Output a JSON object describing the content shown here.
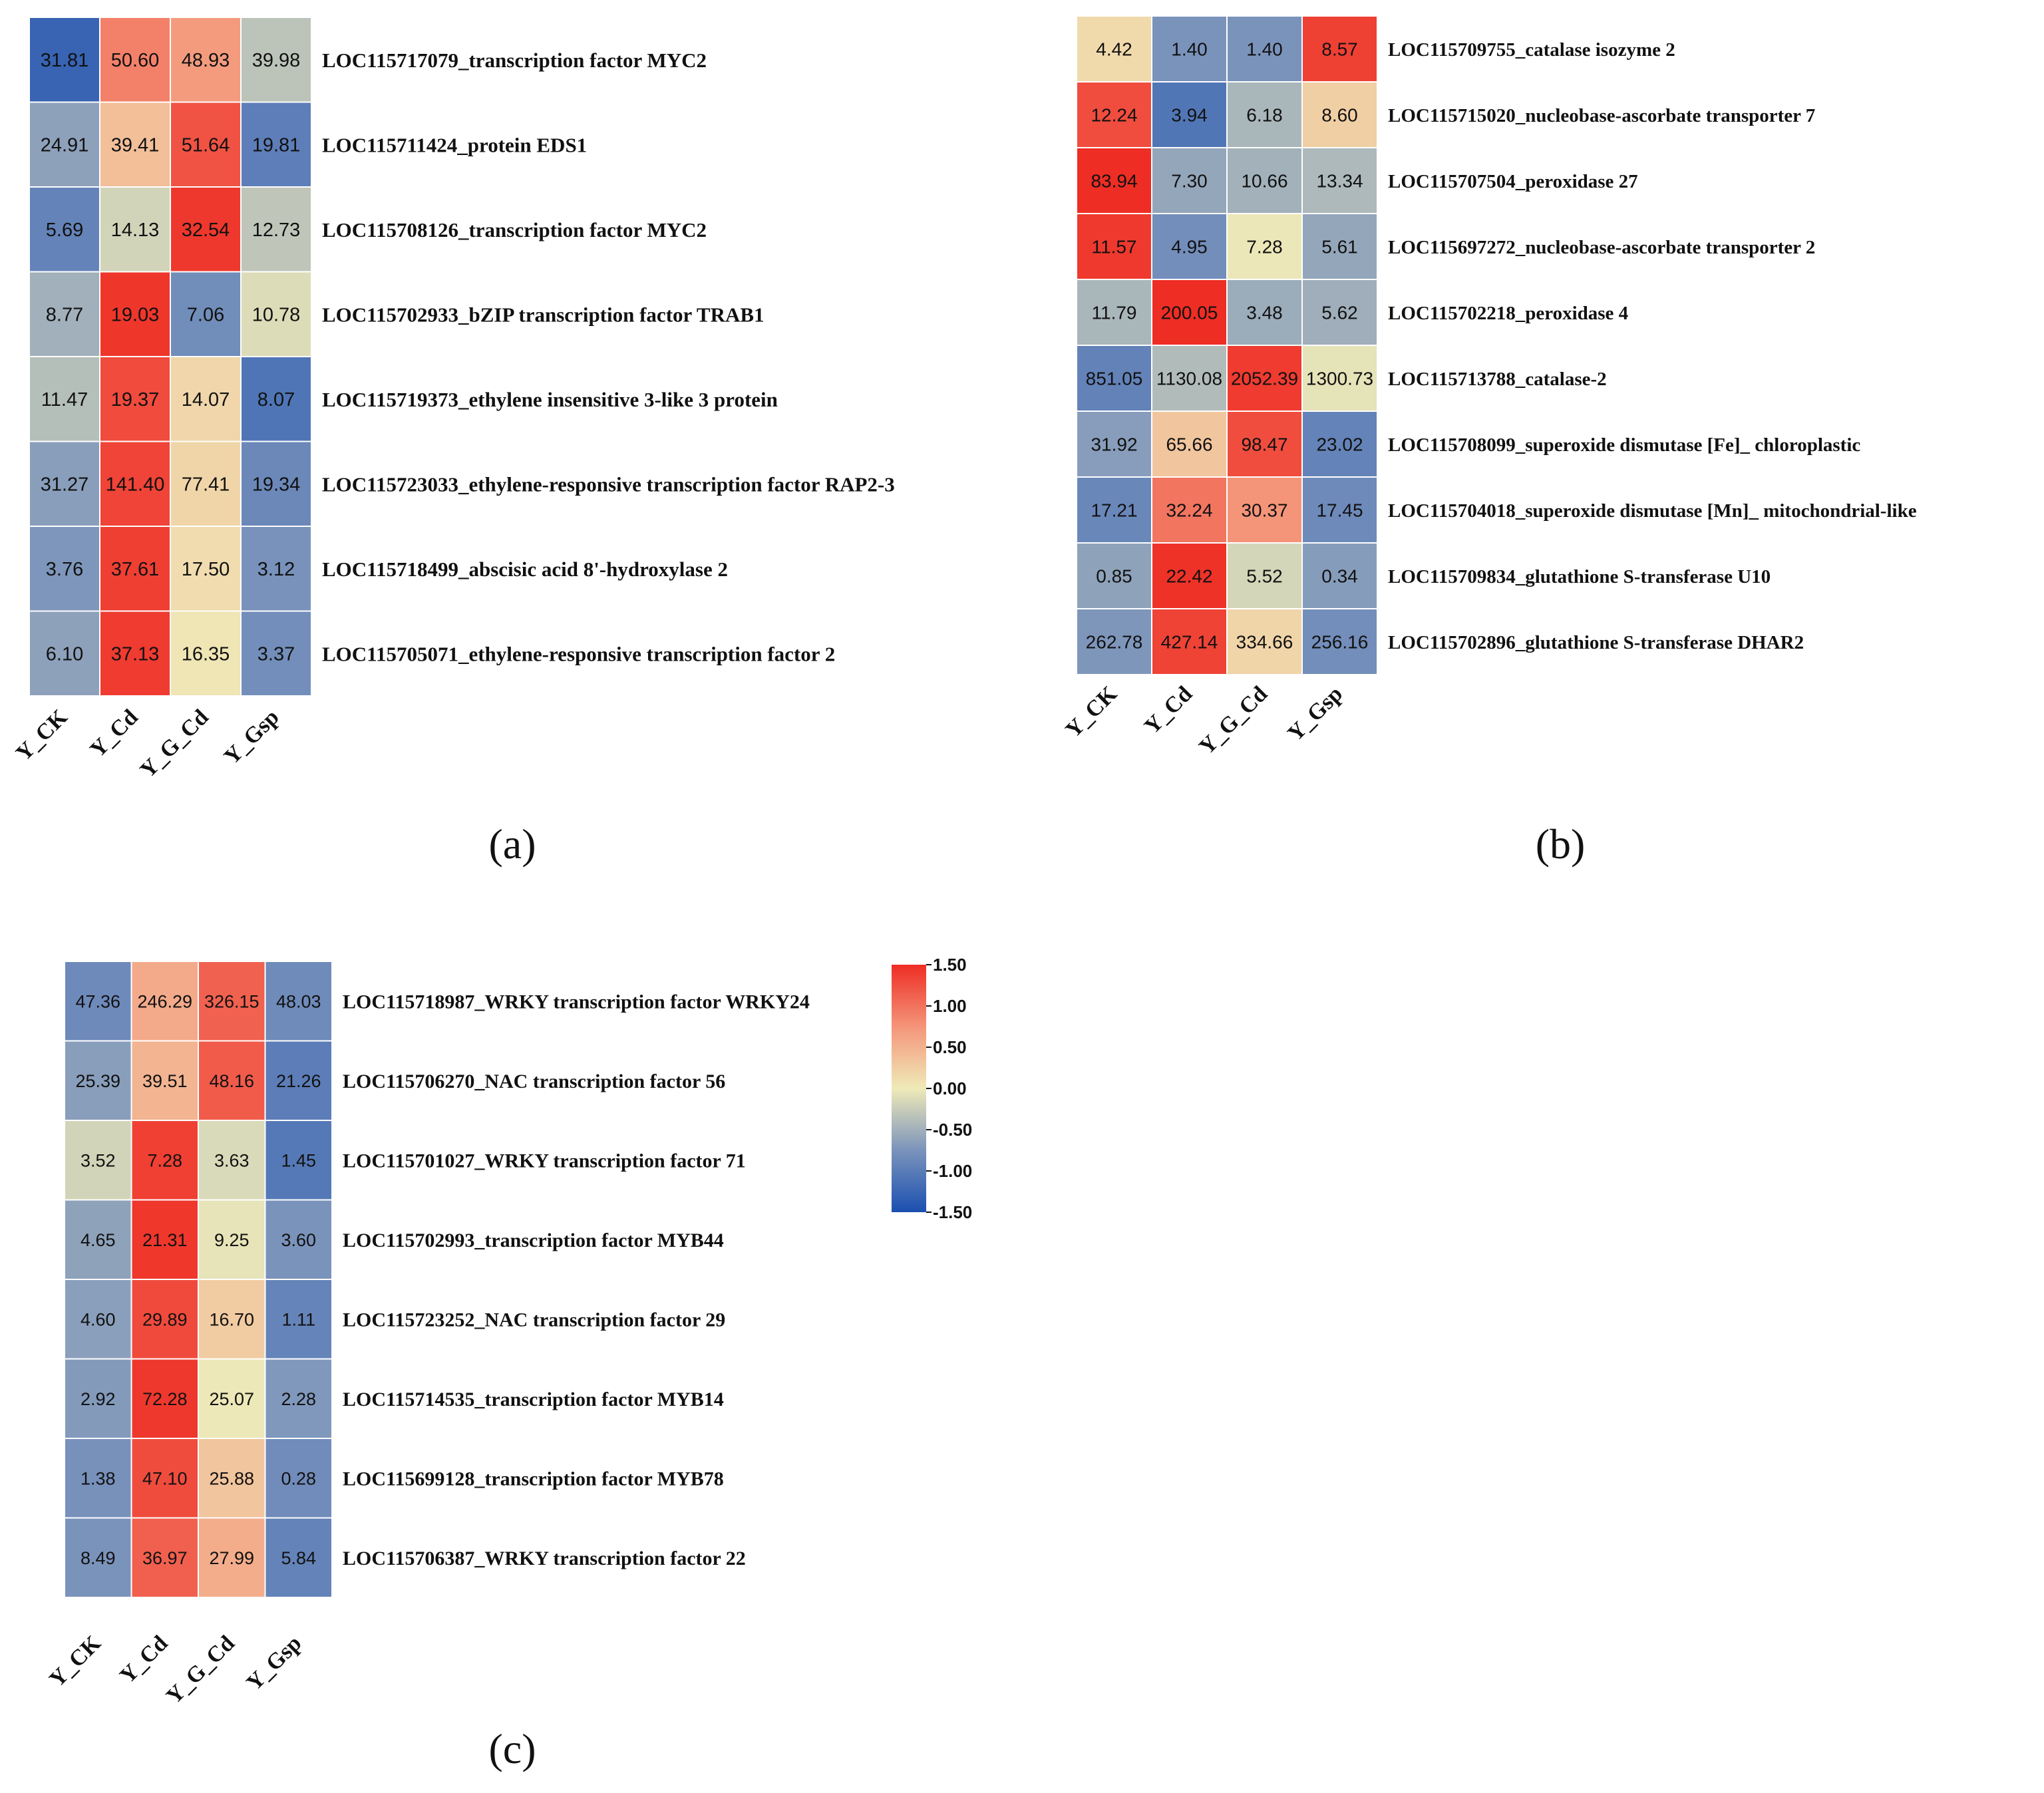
{
  "colors": {
    "low": "#1a4fb0",
    "mid": "#efeab8",
    "high": "#ee2d24"
  },
  "chart_data": [
    {
      "type": "heatmap",
      "panel": "(a)",
      "columns": [
        "Y_CK",
        "Y_Cd",
        "Y_G_Cd",
        "Y_Gsp"
      ],
      "rows": [
        "LOC115717079_transcription factor MYC2",
        "LOC115711424_protein EDS1",
        "LOC115708126_transcription factor MYC2",
        "LOC115702933_bZIP transcription factor TRAB1",
        "LOC115719373_ethylene insensitive 3-like 3 protein",
        "LOC115723033_ethylene-responsive transcription factor RAP2-3",
        "LOC115718499_abscisic acid 8'-hydroxylase 2",
        "LOC115705071_ethylene-responsive transcription factor 2"
      ],
      "values": [
        [
          "31.81",
          "50.60",
          "48.93",
          "39.98"
        ],
        [
          "24.91",
          "39.41",
          "51.64",
          "19.81"
        ],
        [
          "5.69",
          "14.13",
          "32.54",
          "12.73"
        ],
        [
          "8.77",
          "19.03",
          "7.06",
          "10.78"
        ],
        [
          "11.47",
          "19.37",
          "14.07",
          "8.07"
        ],
        [
          "31.27",
          "141.40",
          "77.41",
          "19.34"
        ],
        [
          "3.76",
          "37.61",
          "17.50",
          "3.12"
        ],
        [
          "6.10",
          "37.13",
          "16.35",
          "3.37"
        ]
      ]
    },
    {
      "type": "heatmap",
      "panel": "(b)",
      "columns": [
        "Y_CK",
        "Y_Cd",
        "Y_G_Cd",
        "Y_Gsp"
      ],
      "rows": [
        "LOC115709755_catalase isozyme 2",
        "LOC115715020_nucleobase-ascorbate transporter 7",
        "LOC115707504_peroxidase 27",
        "LOC115697272_nucleobase-ascorbate transporter 2",
        "LOC115702218_peroxidase 4",
        "LOC115713788_catalase-2",
        "LOC115708099_superoxide dismutase [Fe]_ chloroplastic",
        "LOC115704018_superoxide dismutase [Mn]_ mitochondrial-like",
        "LOC115709834_glutathione S-transferase U10",
        "LOC115702896_glutathione S-transferase DHAR2"
      ],
      "values": [
        [
          "4.42",
          "1.40",
          "1.40",
          "8.57"
        ],
        [
          "12.24",
          "3.94",
          "6.18",
          "8.60"
        ],
        [
          "83.94",
          "7.30",
          "10.66",
          "13.34"
        ],
        [
          "11.57",
          "4.95",
          "7.28",
          "5.61"
        ],
        [
          "11.79",
          "200.05",
          "3.48",
          "5.62"
        ],
        [
          "851.05",
          "1130.08",
          "2052.39",
          "1300.73"
        ],
        [
          "31.92",
          "65.66",
          "98.47",
          "23.02"
        ],
        [
          "17.21",
          "32.24",
          "30.37",
          "17.45"
        ],
        [
          "0.85",
          "22.42",
          "5.52",
          "0.34"
        ],
        [
          "262.78",
          "427.14",
          "334.66",
          "256.16"
        ]
      ]
    },
    {
      "type": "heatmap",
      "panel": "(c)",
      "columns": [
        "Y_CK",
        "Y_Cd",
        "Y_G_Cd",
        "Y_Gsp"
      ],
      "rows": [
        "LOC115718987_WRKY transcription factor WRKY24",
        "LOC115706270_NAC transcription factor 56",
        "LOC115701027_WRKY transcription factor 71",
        "LOC115702993_transcription factor MYB44",
        "LOC115723252_NAC transcription factor 29",
        "LOC115714535_transcription factor MYB14",
        "LOC115699128_transcription factor MYB78",
        "LOC115706387_WRKY transcription factor 22"
      ],
      "values": [
        [
          "47.36",
          "246.29",
          "326.15",
          "48.03"
        ],
        [
          "25.39",
          "39.51",
          "48.16",
          "21.26"
        ],
        [
          "3.52",
          "7.28",
          "3.63",
          "1.45"
        ],
        [
          "4.65",
          "21.31",
          "9.25",
          "3.60"
        ],
        [
          "4.60",
          "29.89",
          "16.70",
          "1.11"
        ],
        [
          "2.92",
          "72.28",
          "25.07",
          "2.28"
        ],
        [
          "1.38",
          "47.10",
          "25.88",
          "0.28"
        ],
        [
          "8.49",
          "36.97",
          "27.99",
          "5.84"
        ]
      ]
    }
  ],
  "legend": {
    "range": [
      -1.5,
      1.5
    ],
    "ticks": [
      "1.50",
      "1.00",
      "0.50",
      "0.00",
      "-0.50",
      "-1.00",
      "-1.50"
    ]
  }
}
